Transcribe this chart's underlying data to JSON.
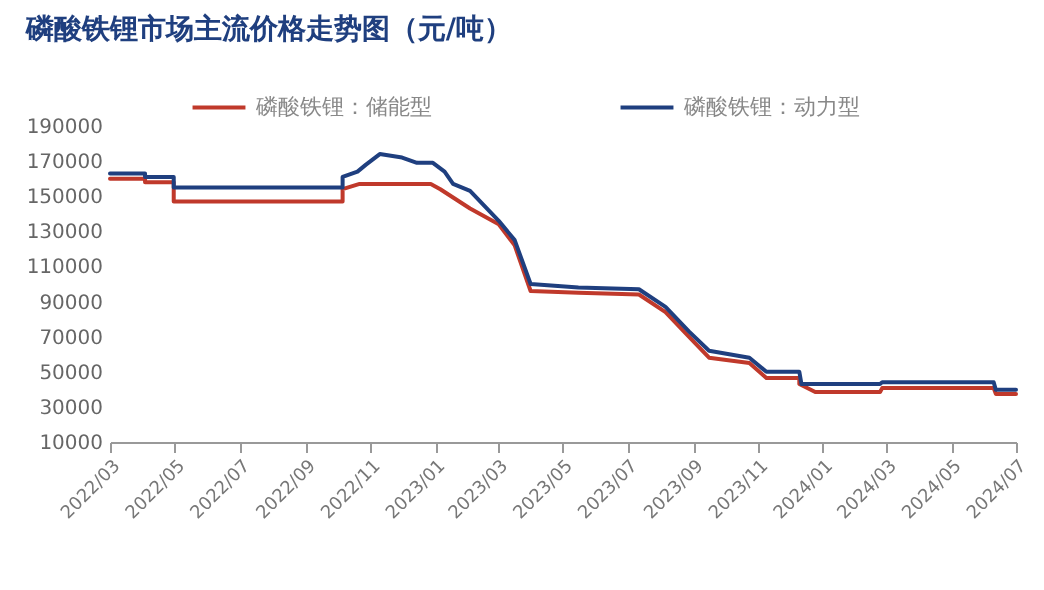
{
  "chart_data": {
    "type": "line",
    "title": "磷酸铁锂市场主流价格走势图（元/吨）",
    "legend": "top",
    "xlim": [
      "2022-03-01",
      "2024-07-01"
    ],
    "xticks": [
      {
        "value": "2022-03-01",
        "label": "2022/03"
      },
      {
        "value": "2022-05-01",
        "label": "2022/05"
      },
      {
        "value": "2022-07-01",
        "label": "2022/07"
      },
      {
        "value": "2022-09-01",
        "label": "2022/09"
      },
      {
        "value": "2022-11-01",
        "label": "2022/11"
      },
      {
        "value": "2023-01-01",
        "label": "2023/01"
      },
      {
        "value": "2023-03-01",
        "label": "2023/03"
      },
      {
        "value": "2023-05-01",
        "label": "2023/05"
      },
      {
        "value": "2023-07-01",
        "label": "2023/07"
      },
      {
        "value": "2023-09-01",
        "label": "2023/09"
      },
      {
        "value": "2023-11-01",
        "label": "2023/11"
      },
      {
        "value": "2024-01-01",
        "label": "2024/01"
      },
      {
        "value": "2024-03-01",
        "label": "2024/03"
      },
      {
        "value": "2024-05-01",
        "label": "2024/05"
      },
      {
        "value": "2024-07-01",
        "label": "2024/07"
      }
    ],
    "ylim": [
      10000,
      190000
    ],
    "yticks": [
      10000,
      30000,
      50000,
      70000,
      90000,
      110000,
      130000,
      150000,
      170000,
      190000
    ],
    "series": [
      {
        "name": "磷酸铁锂：储能型",
        "color": "#c0392b",
        "x": [
          "2022-03-01",
          "2022-04-03",
          "2022-04-03",
          "2022-04-30",
          "2022-04-30",
          "2022-10-06",
          "2022-10-06",
          "2022-10-22",
          "2022-12-28",
          "2023-01-06",
          "2023-02-03",
          "2023-03-02",
          "2023-03-17",
          "2023-04-01",
          "2023-05-16",
          "2023-07-12",
          "2023-08-06",
          "2023-08-28",
          "2023-09-16",
          "2023-10-24",
          "2023-11-09",
          "2023-12-10",
          "2023-12-10",
          "2023-12-25",
          "2024-02-24",
          "2024-02-26",
          "2024-06-10",
          "2024-06-12",
          "2024-07-01"
        ],
        "values": [
          160000,
          160000,
          158000,
          158000,
          147000,
          147000,
          154000,
          157000,
          157000,
          154000,
          143000,
          134000,
          122000,
          96000,
          95000,
          94000,
          84000,
          70000,
          58000,
          55000,
          46500,
          46500,
          43000,
          38500,
          38500,
          40700,
          40700,
          37400,
          37400
        ]
      },
      {
        "name": "磷酸铁锂：动力型",
        "color": "#1f3f7f",
        "x": [
          "2022-03-01",
          "2022-04-03",
          "2022-04-03",
          "2022-04-30",
          "2022-04-30",
          "2022-10-06",
          "2022-10-06",
          "2022-10-20",
          "2022-10-28",
          "2022-11-10",
          "2022-12-01",
          "2022-12-15",
          "2022-12-30",
          "2023-01-10",
          "2023-01-18",
          "2023-02-03",
          "2023-03-02",
          "2023-03-17",
          "2023-04-01",
          "2023-05-16",
          "2023-07-12",
          "2023-08-06",
          "2023-08-28",
          "2023-09-16",
          "2023-10-24",
          "2023-11-09",
          "2023-12-10",
          "2023-12-12",
          "2024-02-24",
          "2024-02-26",
          "2024-06-10",
          "2024-06-12",
          "2024-07-01"
        ],
        "values": [
          163000,
          163000,
          161000,
          161000,
          155000,
          155000,
          161000,
          164000,
          168000,
          174000,
          172000,
          169000,
          169000,
          164000,
          157000,
          153000,
          136000,
          125000,
          100000,
          98000,
          97000,
          87000,
          73000,
          62000,
          58000,
          50000,
          50000,
          43000,
          43000,
          44000,
          44000,
          39700,
          39700
        ]
      }
    ]
  }
}
